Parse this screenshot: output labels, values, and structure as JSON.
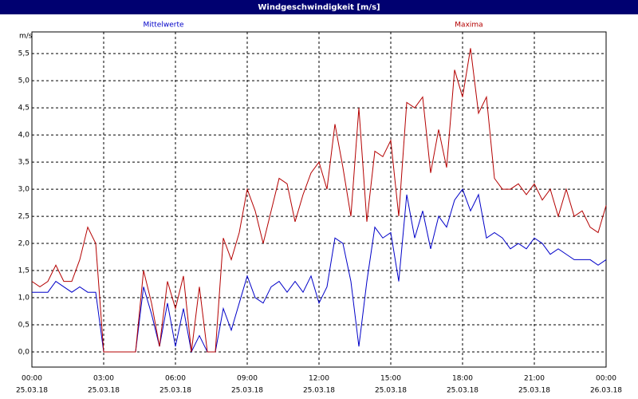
{
  "chart_data": {
    "type": "line",
    "title": "Windgeschwindigkeit [m/s]",
    "y_unit": "m/s",
    "x": [
      0,
      20,
      40,
      60,
      80,
      100,
      120,
      140,
      160,
      180,
      200,
      220,
      240,
      260,
      280,
      300,
      320,
      340,
      360,
      380,
      400,
      420,
      440,
      460,
      480,
      500,
      520,
      540,
      560,
      580,
      600,
      620,
      640,
      660,
      680,
      700,
      720,
      740,
      760,
      780,
      800,
      820,
      840,
      860,
      880,
      900,
      920,
      940,
      960,
      980,
      1000,
      1020,
      1040,
      1060,
      1080,
      1100,
      1120,
      1140,
      1160,
      1180,
      1200,
      1220,
      1240,
      1260,
      1280,
      1300,
      1320,
      1340,
      1360,
      1380,
      1400,
      1420,
      1440
    ],
    "series": [
      {
        "name": "Mittelwerte",
        "color": "#0000c8",
        "values": [
          1.1,
          1.1,
          1.1,
          1.3,
          1.2,
          1.1,
          1.2,
          1.1,
          1.1,
          0,
          0,
          0,
          0,
          0,
          1.2,
          0.7,
          0.1,
          0.9,
          0.1,
          0.8,
          0,
          0.3,
          0,
          0,
          0.8,
          0.4,
          0.9,
          1.4,
          1.0,
          0.9,
          1.2,
          1.3,
          1.1,
          1.3,
          1.1,
          1.4,
          0.9,
          1.2,
          2.1,
          2.0,
          1.3,
          0.1,
          1.3,
          2.3,
          2.1,
          2.2,
          1.3,
          2.9,
          2.1,
          2.6,
          1.9,
          2.5,
          2.3,
          2.8,
          3.0,
          2.6,
          2.9,
          2.1,
          2.2,
          2.1,
          1.9,
          2.0,
          1.9,
          2.1,
          2.0,
          1.8,
          1.9,
          1.8,
          1.7,
          1.7,
          1.7,
          1.6,
          1.7
        ]
      },
      {
        "name": "Maxima",
        "color": "#b40000",
        "values": [
          1.3,
          1.2,
          1.3,
          1.6,
          1.3,
          1.3,
          1.7,
          2.3,
          2.0,
          0,
          0,
          0,
          0,
          0,
          1.5,
          0.9,
          0.1,
          1.3,
          0.8,
          1.4,
          0,
          1.2,
          0,
          0,
          2.1,
          1.7,
          2.2,
          3.0,
          2.6,
          2.0,
          2.6,
          3.2,
          3.1,
          2.4,
          2.9,
          3.3,
          3.5,
          3.0,
          4.2,
          3.4,
          2.5,
          4.5,
          2.4,
          3.7,
          3.6,
          3.9,
          2.5,
          4.6,
          4.5,
          4.7,
          3.3,
          4.1,
          3.4,
          5.2,
          4.7,
          5.6,
          4.4,
          4.7,
          3.2,
          3.0,
          3.0,
          3.1,
          2.9,
          3.1,
          2.8,
          3.0,
          2.5,
          3.0,
          2.5,
          2.6,
          2.3,
          2.2,
          2.7
        ]
      }
    ],
    "xlim": [
      0,
      1440
    ],
    "xticks": [
      {
        "value": 0,
        "label": "00:00",
        "date": "25.03.18"
      },
      {
        "value": 180,
        "label": "03:00",
        "date": "25.03.18"
      },
      {
        "value": 360,
        "label": "06:00",
        "date": "25.03.18"
      },
      {
        "value": 540,
        "label": "09:00",
        "date": "25.03.18"
      },
      {
        "value": 720,
        "label": "12:00",
        "date": "25.03.18"
      },
      {
        "value": 900,
        "label": "15:00",
        "date": "25.03.18"
      },
      {
        "value": 1080,
        "label": "18:00",
        "date": "25.03.18"
      },
      {
        "value": 1260,
        "label": "21:00",
        "date": "25.03.18"
      },
      {
        "value": 1440,
        "label": "00:00",
        "date": "26.03.18"
      }
    ],
    "ylim": [
      -0.28,
      5.9
    ],
    "yticks": [
      {
        "value": 0,
        "label": "0,0"
      },
      {
        "value": 0.5,
        "label": "0,5"
      },
      {
        "value": 1,
        "label": "1,0"
      },
      {
        "value": 1.5,
        "label": "1,5"
      },
      {
        "value": 2,
        "label": "2,0"
      },
      {
        "value": 2.5,
        "label": "2,5"
      },
      {
        "value": 3,
        "label": "3,0"
      },
      {
        "value": 3.5,
        "label": "3,5"
      },
      {
        "value": 4,
        "label": "4,0"
      },
      {
        "value": 4.5,
        "label": "4,5"
      },
      {
        "value": 5,
        "label": "5,0"
      },
      {
        "value": 5.5,
        "label": "5,5"
      }
    ],
    "grid": true
  }
}
